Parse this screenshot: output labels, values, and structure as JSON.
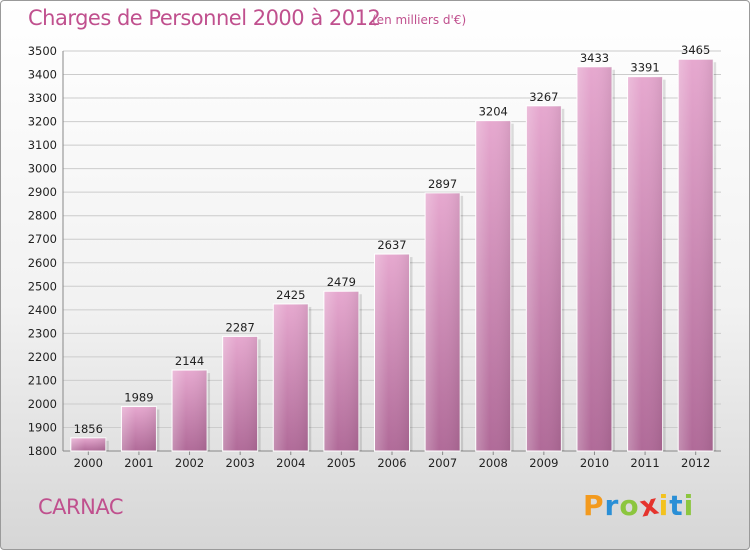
{
  "title": "Charges de Personnel 2000 à 2012",
  "unit_note": "(en milliers d'€)",
  "place": "CARNAC",
  "logo": {
    "text": "Proxiti",
    "letters": [
      "P",
      "r",
      "o",
      "x",
      "i",
      "t",
      "i"
    ],
    "colors": [
      "#f39a1e",
      "#2a8fd6",
      "#8cc63e",
      "#e5342d",
      "#f3c21e",
      "#2a8fd6",
      "#8cc63e"
    ]
  },
  "colors": {
    "bar_top": "#e6a8cf",
    "bar_bottom": "#b06a98",
    "title": "#c0508e",
    "grid": "#cccccc"
  },
  "chart_data": {
    "type": "bar",
    "title": "Charges de Personnel 2000 à 2012",
    "subtitle": "(en milliers d'€)",
    "categories": [
      "2000",
      "2001",
      "2002",
      "2003",
      "2004",
      "2005",
      "2006",
      "2007",
      "2008",
      "2009",
      "2010",
      "2011",
      "2012"
    ],
    "values": [
      1856,
      1989,
      2144,
      2287,
      2425,
      2479,
      2637,
      2897,
      3204,
      3267,
      3433,
      3391,
      3465
    ],
    "ylim": [
      1800,
      3500
    ],
    "yticks": [
      1800,
      1900,
      2000,
      2100,
      2200,
      2300,
      2400,
      2500,
      2600,
      2700,
      2800,
      2900,
      3000,
      3100,
      3200,
      3300,
      3400,
      3500
    ],
    "grid": true,
    "data_labels": true
  }
}
